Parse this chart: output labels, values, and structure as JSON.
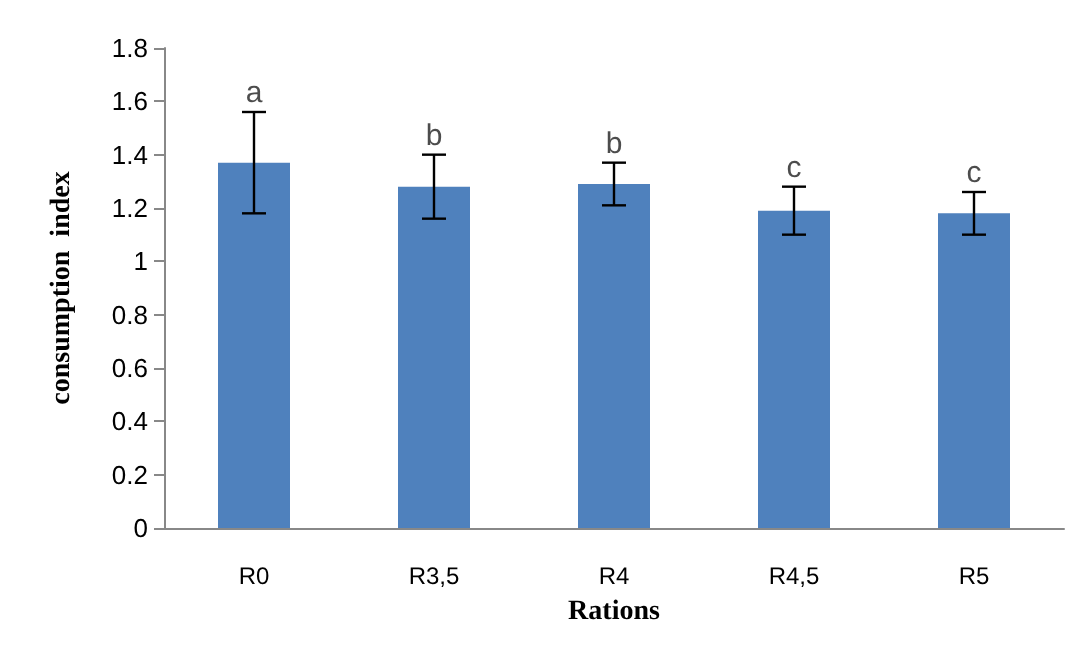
{
  "chart_data": {
    "type": "bar",
    "xlabel": "Rations",
    "ylabel": "consumption  index",
    "categories": [
      "R0",
      "R3,5",
      "R4",
      "R4,5",
      "R5"
    ],
    "values": [
      1.37,
      1.28,
      1.29,
      1.19,
      1.18
    ],
    "errors": [
      0.19,
      0.12,
      0.08,
      0.09,
      0.08
    ],
    "color": "#4f81bd",
    "ylim": [
      0,
      1.8
    ],
    "yticks": [
      0,
      0.2,
      0.4,
      0.6,
      0.8,
      1,
      1.2,
      1.4,
      1.6,
      1.8
    ],
    "grid": false,
    "annotations": [
      {
        "text": "a",
        "x": "R0",
        "y": 1.56
      },
      {
        "text": "b",
        "x": "R3,5",
        "y": 1.4
      },
      {
        "text": "b",
        "x": "R4",
        "y": 1.37
      },
      {
        "text": "c",
        "x": "R4,5",
        "y": 1.28
      },
      {
        "text": "c",
        "x": "R5",
        "y": 1.26
      }
    ]
  }
}
